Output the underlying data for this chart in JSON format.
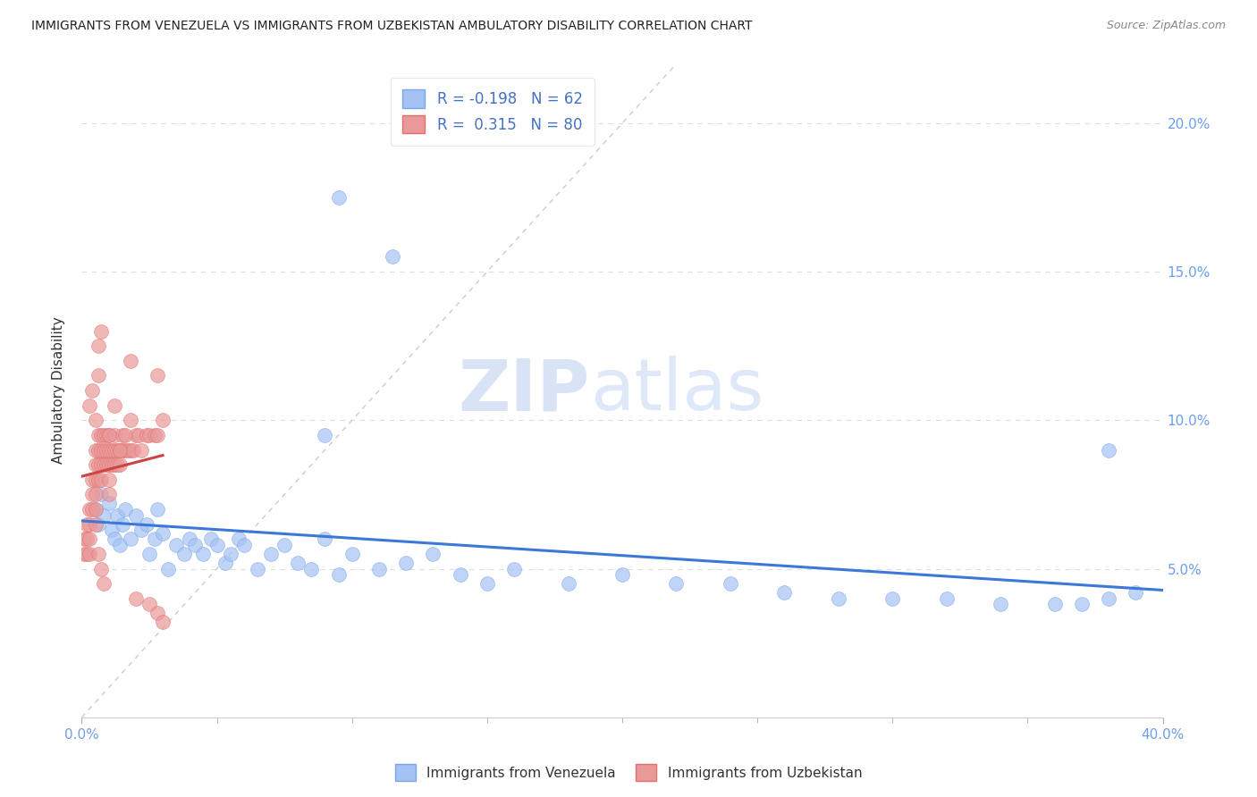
{
  "title": "IMMIGRANTS FROM VENEZUELA VS IMMIGRANTS FROM UZBEKISTAN AMBULATORY DISABILITY CORRELATION CHART",
  "source": "Source: ZipAtlas.com",
  "ylabel": "Ambulatory Disability",
  "xlim": [
    0.0,
    0.4
  ],
  "ylim": [
    0.0,
    0.22
  ],
  "legend_r_venezuela": "-0.198",
  "legend_n_venezuela": "62",
  "legend_r_uzbekistan": "0.315",
  "legend_n_uzbekistan": "80",
  "venezuela_color": "#a4c2f4",
  "uzbekistan_color": "#ea9999",
  "venezuela_line_color": "#3c78d8",
  "uzbekistan_line_color": "#cc4444",
  "diagonal_color": "#cccccc",
  "background_color": "#ffffff",
  "tick_color": "#6d9eeb",
  "watermark_zip": "ZIP",
  "watermark_atlas": "atlas",
  "yticks": [
    0.05,
    0.1,
    0.15,
    0.2
  ],
  "xtick_minor": [
    0.05,
    0.1,
    0.15,
    0.2,
    0.25,
    0.3,
    0.35
  ],
  "venezuela_x": [
    0.005,
    0.006,
    0.007,
    0.008,
    0.01,
    0.011,
    0.012,
    0.013,
    0.014,
    0.015,
    0.016,
    0.018,
    0.02,
    0.022,
    0.024,
    0.025,
    0.027,
    0.028,
    0.03,
    0.032,
    0.035,
    0.038,
    0.04,
    0.042,
    0.045,
    0.048,
    0.05,
    0.053,
    0.055,
    0.058,
    0.06,
    0.065,
    0.07,
    0.075,
    0.08,
    0.085,
    0.09,
    0.095,
    0.1,
    0.11,
    0.12,
    0.13,
    0.14,
    0.15,
    0.16,
    0.18,
    0.2,
    0.22,
    0.24,
    0.26,
    0.28,
    0.3,
    0.32,
    0.34,
    0.36,
    0.37,
    0.38,
    0.39,
    0.095,
    0.115,
    0.09,
    0.38
  ],
  "venezuela_y": [
    0.07,
    0.065,
    0.075,
    0.068,
    0.072,
    0.063,
    0.06,
    0.068,
    0.058,
    0.065,
    0.07,
    0.06,
    0.068,
    0.063,
    0.065,
    0.055,
    0.06,
    0.07,
    0.062,
    0.05,
    0.058,
    0.055,
    0.06,
    0.058,
    0.055,
    0.06,
    0.058,
    0.052,
    0.055,
    0.06,
    0.058,
    0.05,
    0.055,
    0.058,
    0.052,
    0.05,
    0.06,
    0.048,
    0.055,
    0.05,
    0.052,
    0.055,
    0.048,
    0.045,
    0.05,
    0.045,
    0.048,
    0.045,
    0.045,
    0.042,
    0.04,
    0.04,
    0.04,
    0.038,
    0.038,
    0.038,
    0.04,
    0.042,
    0.175,
    0.155,
    0.095,
    0.09
  ],
  "uzbekistan_x": [
    0.001,
    0.001,
    0.002,
    0.002,
    0.002,
    0.003,
    0.003,
    0.003,
    0.003,
    0.004,
    0.004,
    0.004,
    0.005,
    0.005,
    0.005,
    0.005,
    0.005,
    0.005,
    0.006,
    0.006,
    0.006,
    0.006,
    0.007,
    0.007,
    0.007,
    0.007,
    0.008,
    0.008,
    0.008,
    0.009,
    0.009,
    0.009,
    0.01,
    0.01,
    0.01,
    0.01,
    0.01,
    0.011,
    0.011,
    0.012,
    0.012,
    0.012,
    0.013,
    0.013,
    0.014,
    0.014,
    0.015,
    0.015,
    0.016,
    0.017,
    0.018,
    0.019,
    0.02,
    0.021,
    0.022,
    0.024,
    0.025,
    0.027,
    0.028,
    0.03,
    0.018,
    0.028,
    0.003,
    0.004,
    0.005,
    0.006,
    0.006,
    0.007,
    0.01,
    0.012,
    0.014,
    0.016,
    0.018,
    0.006,
    0.007,
    0.008,
    0.02,
    0.025,
    0.028,
    0.03
  ],
  "uzbekistan_y": [
    0.06,
    0.055,
    0.065,
    0.06,
    0.055,
    0.07,
    0.065,
    0.06,
    0.055,
    0.08,
    0.075,
    0.07,
    0.09,
    0.085,
    0.08,
    0.075,
    0.07,
    0.065,
    0.095,
    0.09,
    0.085,
    0.08,
    0.095,
    0.09,
    0.085,
    0.08,
    0.095,
    0.09,
    0.085,
    0.095,
    0.09,
    0.085,
    0.095,
    0.09,
    0.085,
    0.08,
    0.075,
    0.09,
    0.085,
    0.095,
    0.09,
    0.085,
    0.09,
    0.085,
    0.09,
    0.085,
    0.095,
    0.09,
    0.09,
    0.09,
    0.09,
    0.09,
    0.095,
    0.095,
    0.09,
    0.095,
    0.095,
    0.095,
    0.095,
    0.1,
    0.12,
    0.115,
    0.105,
    0.11,
    0.1,
    0.115,
    0.125,
    0.13,
    0.095,
    0.105,
    0.09,
    0.095,
    0.1,
    0.055,
    0.05,
    0.045,
    0.04,
    0.038,
    0.035,
    0.032
  ]
}
